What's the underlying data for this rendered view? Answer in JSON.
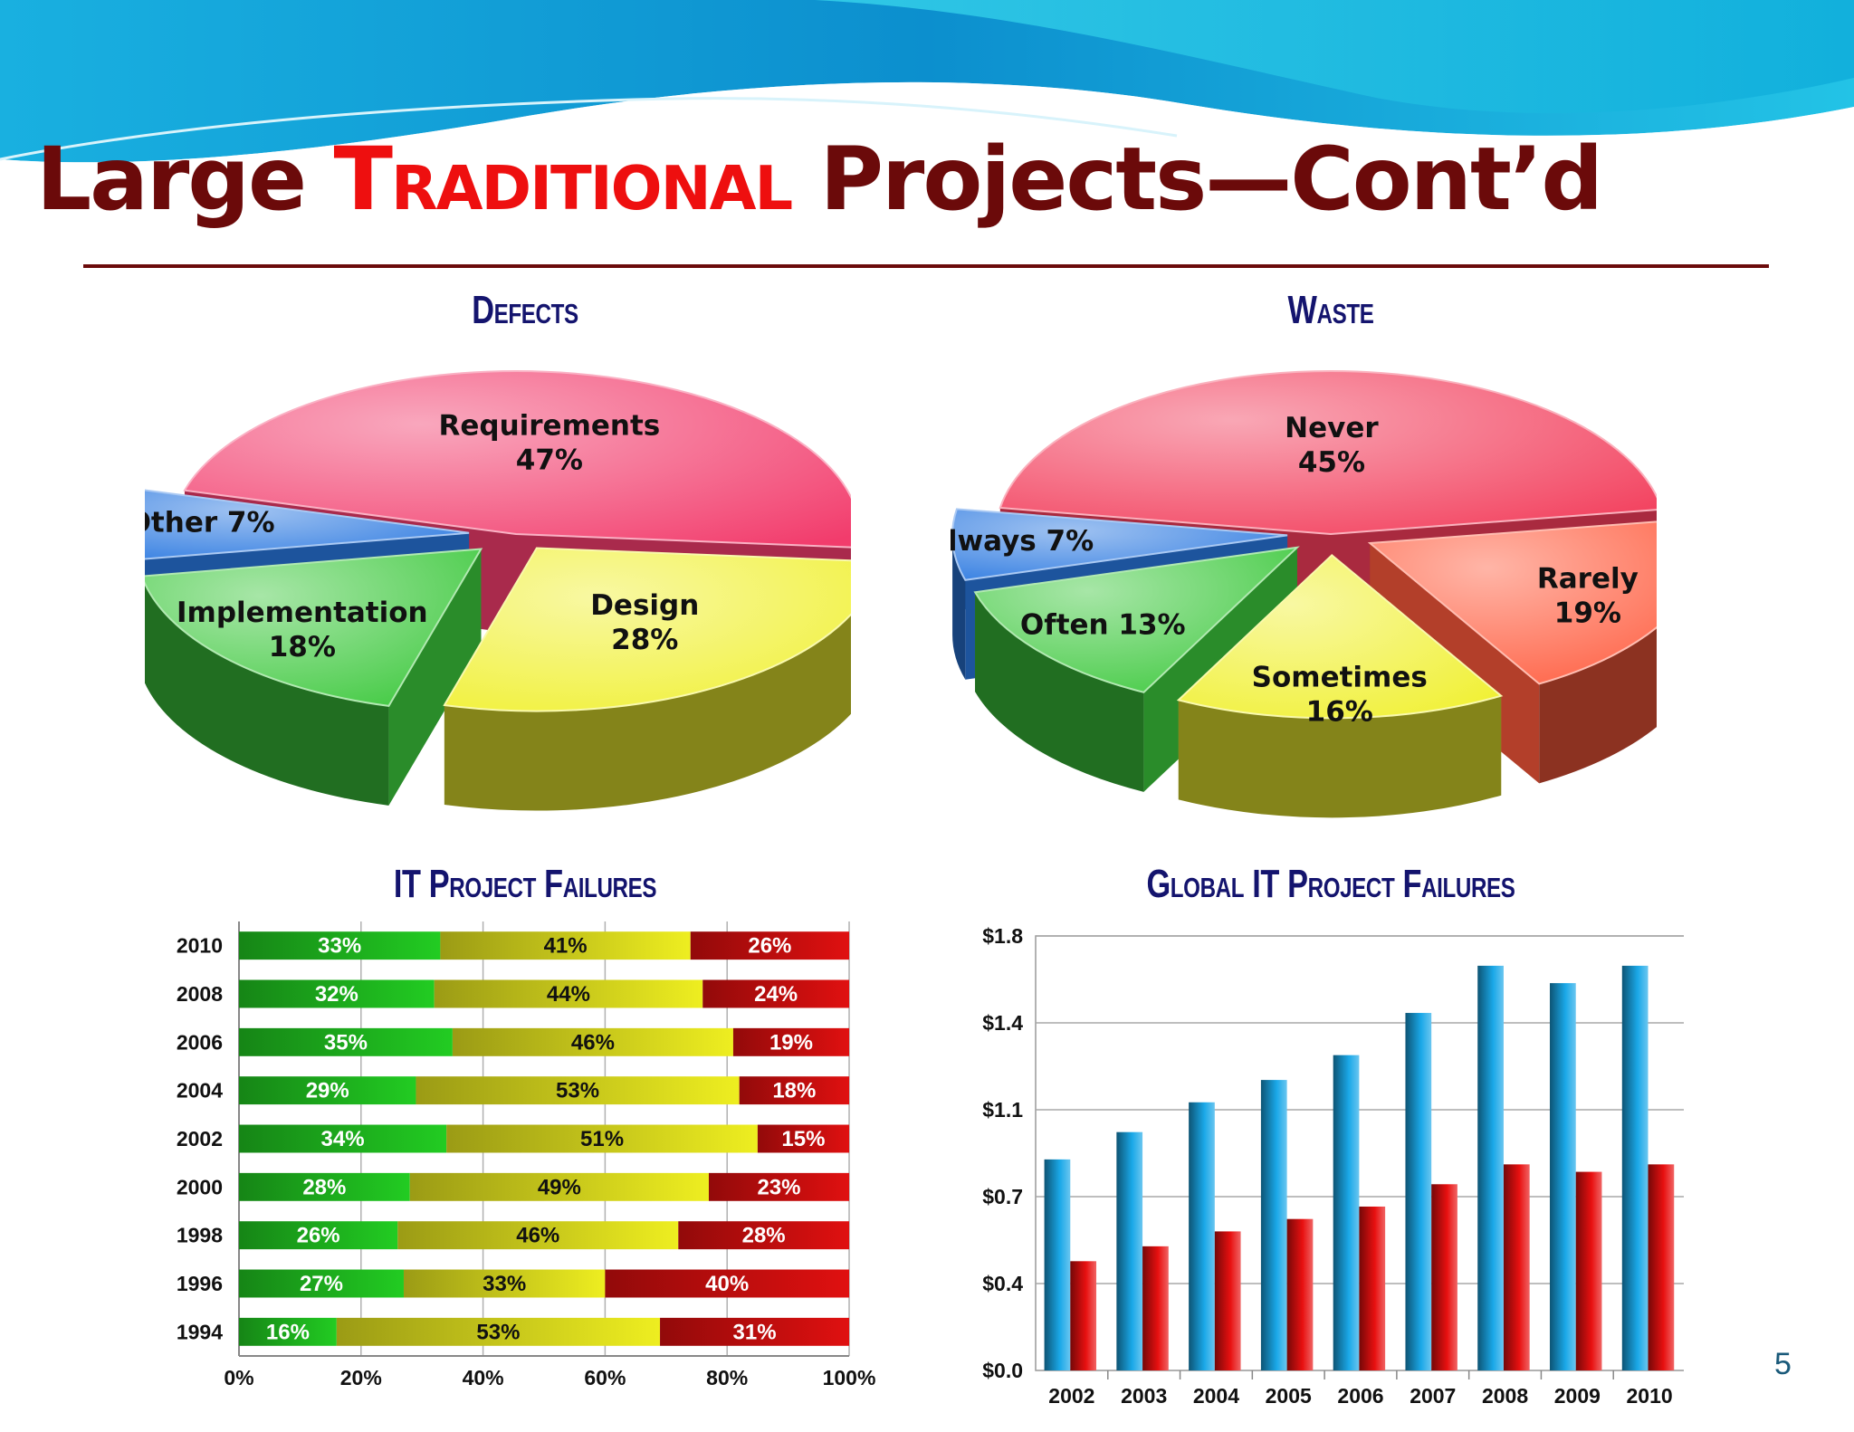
{
  "slide": {
    "title_pre": "Large ",
    "title_highlight": "Traditional",
    "title_post": " Projects—Cont’d",
    "page_number": "5",
    "colors": {
      "title": "#6b0a0a",
      "highlight": "#ee0f0f",
      "chart_titles": "#14146e"
    }
  },
  "chart_data": [
    {
      "type": "pie",
      "title": "Defects",
      "slices": [
        {
          "label": "Requirements",
          "value": 47,
          "text": "47%",
          "color": "#f23c6c"
        },
        {
          "label": "Design",
          "value": 28,
          "text": "28%",
          "color": "#f0f030"
        },
        {
          "label": "Implementation",
          "value": 18,
          "text": "18%",
          "color": "#3cc83c"
        },
        {
          "label": "Other",
          "value": 7,
          "text": "7%",
          "color": "#2a78e0"
        }
      ]
    },
    {
      "type": "pie",
      "title": "Waste",
      "slices": [
        {
          "label": "Never",
          "value": 45,
          "text": "45%",
          "color": "#f23c5a"
        },
        {
          "label": "Rarely",
          "value": 19,
          "text": "19%",
          "color": "#ff5a3c"
        },
        {
          "label": "Sometimes",
          "value": 16,
          "text": "16%",
          "color": "#f0f030"
        },
        {
          "label": "Often",
          "value": 13,
          "text": "13%",
          "color": "#3cc83c"
        },
        {
          "label": "Always",
          "value": 7,
          "text": "7%",
          "color": "#2a78e0"
        }
      ]
    },
    {
      "type": "bar",
      "orientation": "horizontal",
      "stacked": "percent",
      "title": "IT Project Failures",
      "categories": [
        "2010",
        "2008",
        "2006",
        "2004",
        "2002",
        "2000",
        "1998",
        "1996",
        "1994"
      ],
      "series": [
        {
          "values": [
            33,
            32,
            35,
            29,
            34,
            28,
            26,
            27,
            16
          ],
          "color": "#22cc22"
        },
        {
          "values": [
            41,
            44,
            46,
            53,
            51,
            49,
            46,
            33,
            53
          ],
          "color": "#eeee20"
        },
        {
          "values": [
            26,
            24,
            19,
            18,
            15,
            23,
            28,
            40,
            31
          ],
          "color": "#e01010"
        }
      ],
      "xlim": [
        0,
        100
      ],
      "xticks": [
        "0%",
        "20%",
        "40%",
        "60%",
        "80%",
        "100%"
      ],
      "grid": true
    },
    {
      "type": "bar",
      "title": "Global IT Project Failures",
      "categories": [
        "2002",
        "2003",
        "2004",
        "2005",
        "2006",
        "2007",
        "2008",
        "2009",
        "2010"
      ],
      "series": [
        {
          "values": [
            0.85,
            0.96,
            1.08,
            1.17,
            1.27,
            1.44,
            1.63,
            1.56,
            1.63
          ],
          "color": "#1aa8e8"
        },
        {
          "values": [
            0.44,
            0.5,
            0.56,
            0.61,
            0.66,
            0.75,
            0.83,
            0.8,
            0.83
          ],
          "color": "#e81010"
        }
      ],
      "ylim": [
        0,
        1.75
      ],
      "yticks": [
        {
          "value": 0,
          "label": "$0.0"
        },
        {
          "value": 0.35,
          "label": "$0.4"
        },
        {
          "value": 0.7,
          "label": "$0.7"
        },
        {
          "value": 1.05,
          "label": "$1.1"
        },
        {
          "value": 1.4,
          "label": "$1.4"
        },
        {
          "value": 1.75,
          "label": "$1.8"
        }
      ],
      "grid": true
    }
  ]
}
